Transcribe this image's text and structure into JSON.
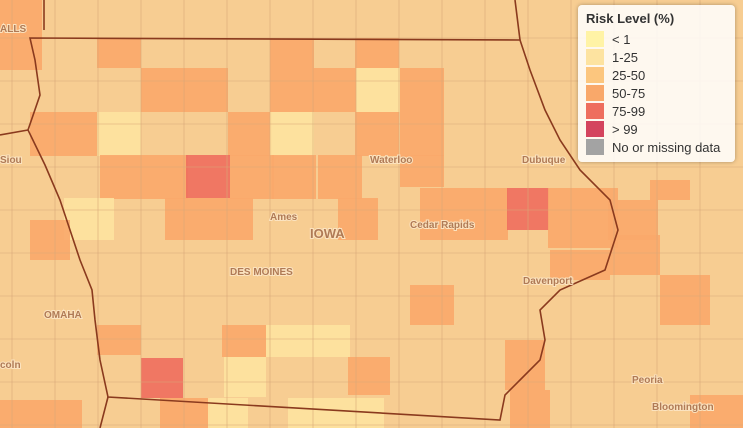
{
  "legend": {
    "title": "Risk Level (%)",
    "items": [
      {
        "label": "< 1",
        "color": "#fff3a6"
      },
      {
        "label": "1-25",
        "color": "#fde3a0"
      },
      {
        "label": "25-50",
        "color": "#fcc67e"
      },
      {
        "label": "50-75",
        "color": "#f9a86a"
      },
      {
        "label": "75-99",
        "color": "#ee6e5e"
      },
      {
        "label": "> 99",
        "color": "#d4445e"
      },
      {
        "label": "No or missing data",
        "color": "#a3a3a3"
      }
    ]
  },
  "map": {
    "labels": [
      "ALLS",
      "Siou",
      "Waterloo",
      "Dubuque",
      "Ames",
      "IOWA",
      "Cedar Rapids",
      "DES MOINES",
      "Davenport",
      "OMAHA",
      "coln",
      "Peoria",
      "Bloomington"
    ]
  }
}
